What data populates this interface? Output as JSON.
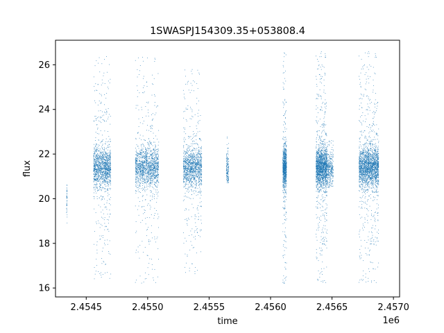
{
  "chart_data": {
    "type": "scatter",
    "title": "1SWASPJ154309.35+053808.4",
    "xlabel": "time",
    "ylabel": "flux",
    "x_offset_label": "1e6",
    "xlim": [
      2454250,
      2457050
    ],
    "ylim": [
      15.6,
      27.1
    ],
    "x_ticks": [
      2454500,
      2455000,
      2455500,
      2456000,
      2456500,
      2457000
    ],
    "x_tick_labels": [
      "2.4545",
      "2.4550",
      "2.4555",
      "2.4560",
      "2.4565",
      "2.4570"
    ],
    "y_ticks": [
      16,
      18,
      20,
      22,
      24,
      26
    ],
    "y_tick_labels": [
      "16",
      "18",
      "20",
      "22",
      "24",
      "26"
    ],
    "grid": false,
    "marker_color": "#1f77b4",
    "clusters": [
      {
        "x_range": [
          2454340,
          2454345
        ],
        "y_center": 20.0,
        "y_range": [
          18.4,
          20.8
        ],
        "approx_points": 40
      },
      {
        "x_range": [
          2454560,
          2454700
        ],
        "y_center": 21.4,
        "y_range": [
          16.1,
          26.4
        ],
        "approx_points": 1400
      },
      {
        "x_range": [
          2454900,
          2455090
        ],
        "y_center": 21.4,
        "y_range": [
          16.2,
          26.4
        ],
        "approx_points": 1500
      },
      {
        "x_range": [
          2455290,
          2455440
        ],
        "y_center": 21.4,
        "y_range": [
          16.5,
          25.8
        ],
        "approx_points": 1300
      },
      {
        "x_range": [
          2455640,
          2455660
        ],
        "y_center": 21.3,
        "y_range": [
          20.7,
          22.8
        ],
        "approx_points": 150
      },
      {
        "x_range": [
          2456100,
          2456130
        ],
        "y_center": 21.4,
        "y_range": [
          16.2,
          26.6
        ],
        "approx_points": 900
      },
      {
        "x_range": [
          2456370,
          2456460
        ],
        "y_center": 21.4,
        "y_range": [
          16.2,
          26.6
        ],
        "approx_points": 1800
      },
      {
        "x_range": [
          2456460,
          2456510
        ],
        "y_center": 21.4,
        "y_range": [
          20.5,
          22.8
        ],
        "approx_points": 300
      },
      {
        "x_range": [
          2456720,
          2456880
        ],
        "y_center": 21.4,
        "y_range": [
          16.2,
          26.6
        ],
        "approx_points": 2200
      }
    ]
  }
}
